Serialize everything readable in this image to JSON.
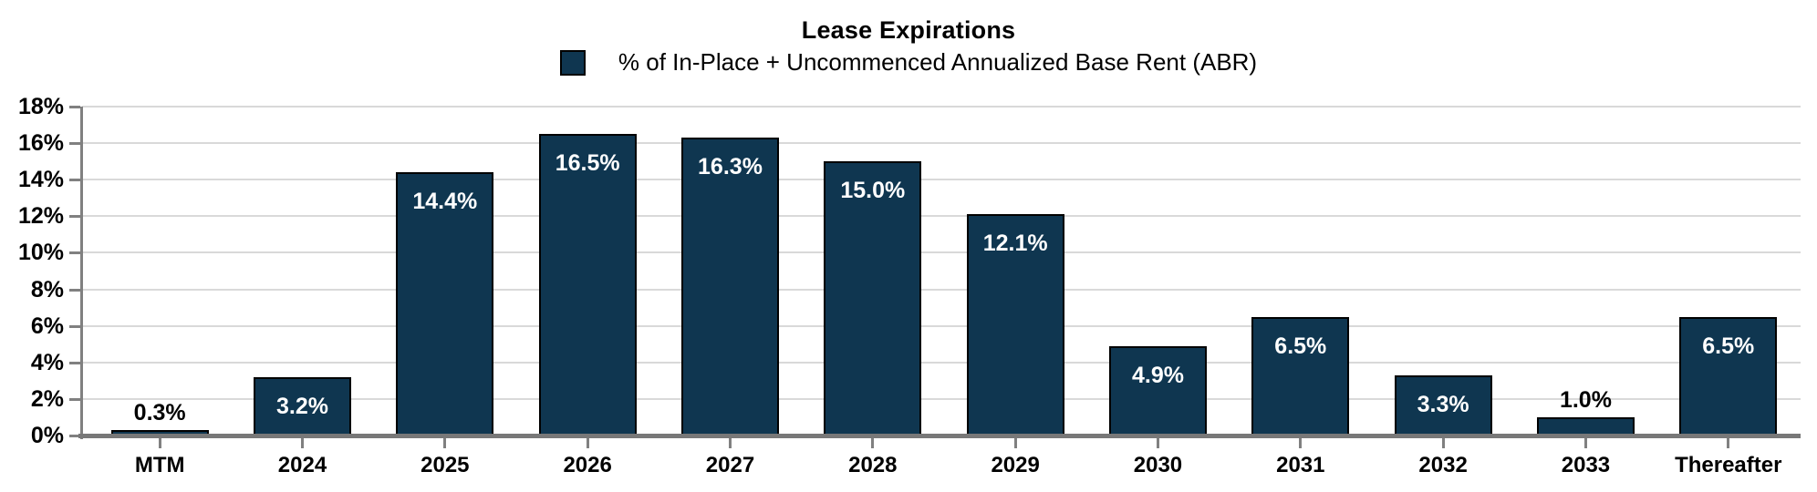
{
  "chart_data": {
    "type": "bar",
    "title": "Lease Expirations",
    "legend": {
      "label": "% of In-Place + Uncommenced Annualized Base Rent (ABR)",
      "position": "top-center"
    },
    "categories": [
      "MTM",
      "2024",
      "2025",
      "2026",
      "2027",
      "2028",
      "2029",
      "2030",
      "2031",
      "2032",
      "2033",
      "Thereafter"
    ],
    "values": [
      0.3,
      3.2,
      14.4,
      16.5,
      16.3,
      15.0,
      12.1,
      4.9,
      6.5,
      3.3,
      1.0,
      6.5
    ],
    "value_labels": [
      "0.3%",
      "3.2%",
      "14.4%",
      "16.5%",
      "16.3%",
      "15.0%",
      "12.1%",
      "4.9%",
      "6.5%",
      "3.3%",
      "1.0%",
      "6.5%"
    ],
    "xlabel": "",
    "ylabel": "",
    "ylim": [
      0,
      18
    ],
    "ytick_step": 2,
    "ytick_labels": [
      "0%",
      "2%",
      "4%",
      "6%",
      "8%",
      "10%",
      "12%",
      "14%",
      "16%",
      "18%"
    ],
    "grid": "horizontal",
    "legend_position": "top-center",
    "inside_label_min_value": 2,
    "colors": {
      "bar_fill": "#0F3650",
      "bar_border": "#000000",
      "gridline": "#D9D9D9",
      "axis": "#808080",
      "baseline": "#787878",
      "label_inside": "#FFFFFF",
      "label_outside": "#000000",
      "text": "#000000"
    }
  }
}
